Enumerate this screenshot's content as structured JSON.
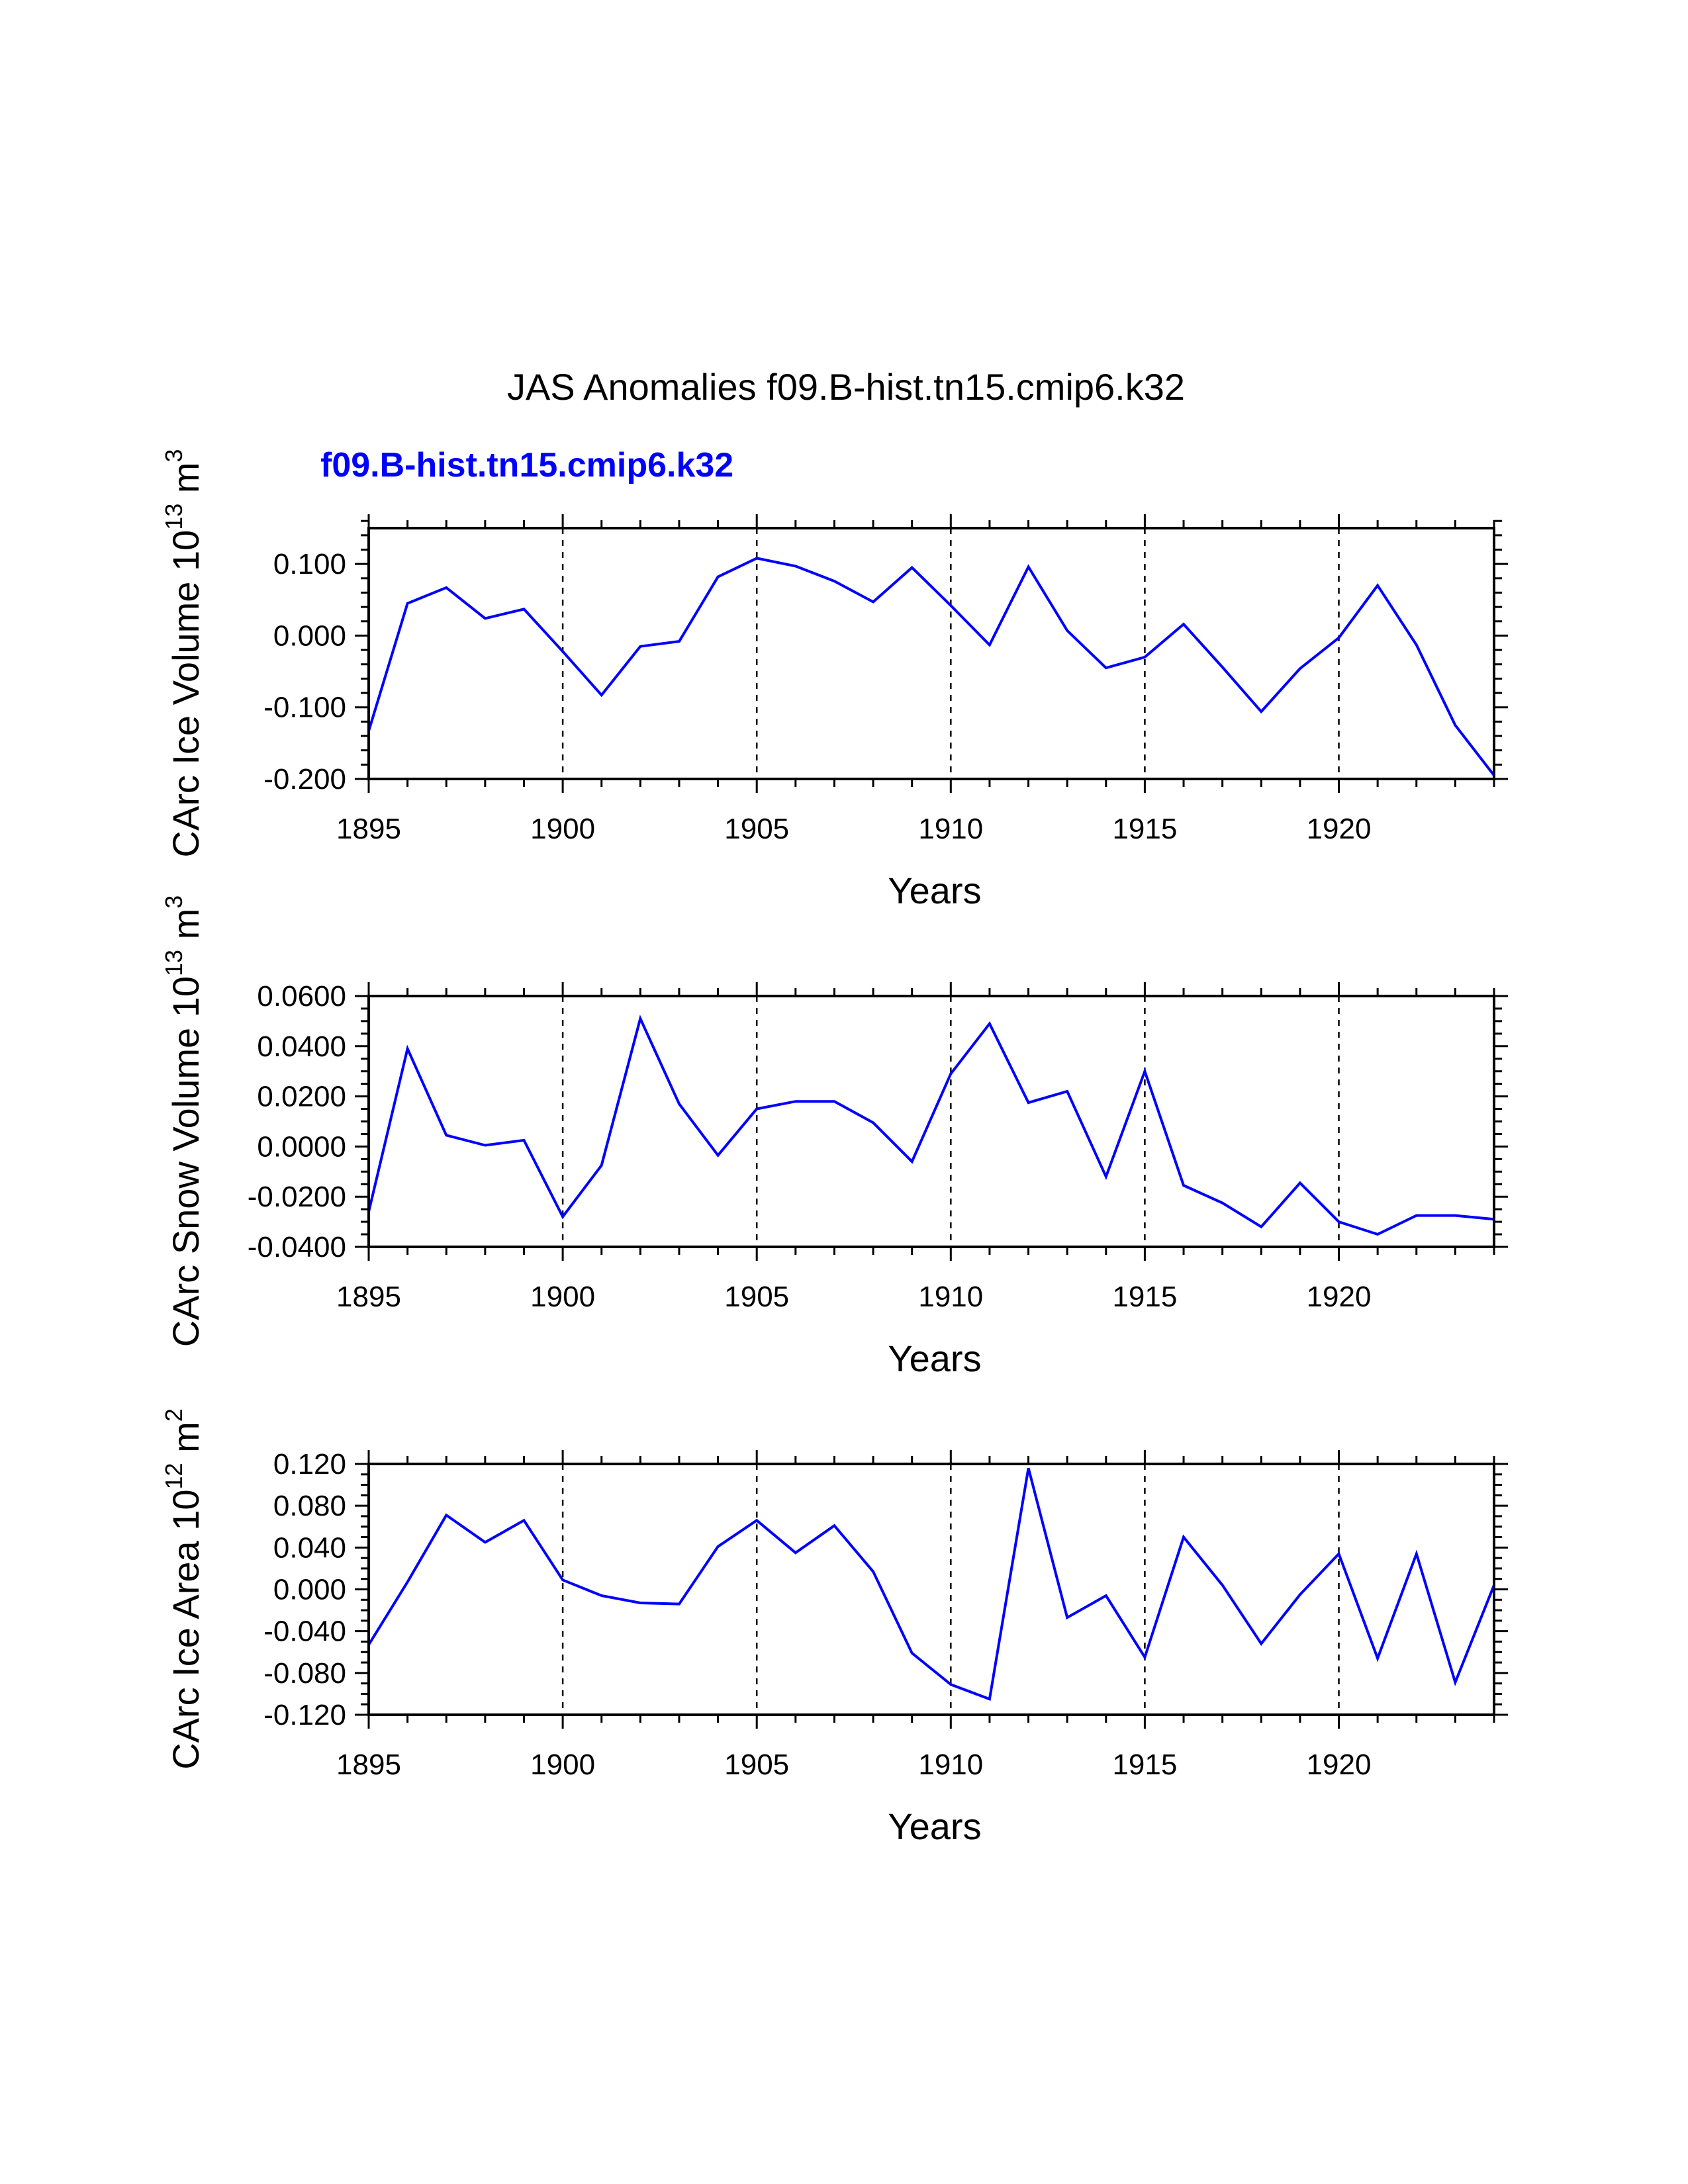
{
  "title": "JAS Anomalies f09.B-hist.tn15.cmip6.k32",
  "case_label": "f09.B-hist.tn15.cmip6.k32",
  "colors": {
    "series": "#0000ff",
    "axes": "#000000",
    "case_label": "#0000ff",
    "gridline": "#000000"
  },
  "chart_data": [
    {
      "type": "line",
      "ylabel": "CArc Ice Volume 10",
      "ylabel_exp": "13",
      "ylabel_unit": "m",
      "ylabel_unit_exp": "3",
      "xlabel": "Years",
      "xlim": [
        1895,
        1924
      ],
      "ylim": [
        -0.2,
        0.15
      ],
      "yticks": [
        -0.2,
        -0.1,
        0.0,
        0.1
      ],
      "ytick_labels": [
        "-0.200",
        "-0.100",
        "0.000",
        "0.100"
      ],
      "yminor_step": 0.02,
      "xticks": [
        1895,
        1900,
        1905,
        1910,
        1915,
        1920
      ],
      "xtick_labels": [
        "1895",
        "1900",
        "1905",
        "1910",
        "1915",
        "1920"
      ],
      "grid_x": [
        1900,
        1905,
        1910,
        1915,
        1920
      ],
      "series": [
        {
          "name": "f09.B-hist.tn15.cmip6.k32",
          "x": [
            1895,
            1896,
            1897,
            1898,
            1899,
            1900,
            1901,
            1902,
            1903,
            1904,
            1905,
            1906,
            1907,
            1908,
            1909,
            1910,
            1911,
            1912,
            1913,
            1914,
            1915,
            1916,
            1917,
            1918,
            1919,
            1920,
            1921,
            1922,
            1923,
            1924
          ],
          "values": [
            -0.133,
            0.045,
            0.067,
            0.024,
            0.037,
            -0.022,
            -0.083,
            -0.015,
            -0.008,
            0.082,
            0.108,
            0.097,
            0.076,
            0.047,
            0.095,
            0.042,
            -0.013,
            0.096,
            0.007,
            -0.045,
            -0.03,
            0.016,
            -0.044,
            -0.106,
            -0.046,
            -0.003,
            0.07,
            -0.013,
            -0.125,
            -0.195
          ]
        }
      ]
    },
    {
      "type": "line",
      "ylabel": "CArc Snow Volume 10",
      "ylabel_exp": "13",
      "ylabel_unit": "m",
      "ylabel_unit_exp": "3",
      "xlabel": "Years",
      "xlim": [
        1895,
        1924
      ],
      "ylim": [
        -0.04,
        0.06
      ],
      "yticks": [
        -0.04,
        -0.02,
        0.0,
        0.02,
        0.04,
        0.06
      ],
      "ytick_labels": [
        "-0.0400",
        "-0.0200",
        "0.0000",
        "0.0200",
        "0.0400",
        "0.0600"
      ],
      "yminor_step": 0.005,
      "xticks": [
        1895,
        1900,
        1905,
        1910,
        1915,
        1920
      ],
      "xtick_labels": [
        "1895",
        "1900",
        "1905",
        "1910",
        "1915",
        "1920"
      ],
      "grid_x": [
        1900,
        1905,
        1910,
        1915,
        1920
      ],
      "series": [
        {
          "name": "f09.B-hist.tn15.cmip6.k32",
          "x": [
            1895,
            1896,
            1897,
            1898,
            1899,
            1900,
            1901,
            1902,
            1903,
            1904,
            1905,
            1906,
            1907,
            1908,
            1909,
            1910,
            1911,
            1912,
            1913,
            1914,
            1915,
            1916,
            1917,
            1918,
            1919,
            1920,
            1921,
            1922,
            1923,
            1924
          ],
          "values": [
            -0.026,
            0.039,
            0.0045,
            0.0005,
            0.0025,
            -0.028,
            -0.0075,
            0.051,
            0.017,
            -0.0035,
            0.015,
            0.018,
            0.018,
            0.0095,
            -0.006,
            0.029,
            0.049,
            0.0175,
            0.022,
            -0.012,
            0.03,
            -0.0155,
            -0.0225,
            -0.032,
            -0.0145,
            -0.03,
            -0.035,
            -0.0275,
            -0.0275,
            -0.029
          ]
        }
      ]
    },
    {
      "type": "line",
      "ylabel": "CArc Ice Area 10",
      "ylabel_exp": "12",
      "ylabel_unit": "m",
      "ylabel_unit_exp": "2",
      "xlabel": "Years",
      "xlim": [
        1895,
        1924
      ],
      "ylim": [
        -0.12,
        0.12
      ],
      "yticks": [
        -0.12,
        -0.08,
        -0.04,
        0.0,
        0.04,
        0.08,
        0.12
      ],
      "ytick_labels": [
        "-0.120",
        "-0.080",
        "-0.040",
        "0.000",
        "0.040",
        "0.080",
        "0.120"
      ],
      "yminor_step": 0.01,
      "xticks": [
        1895,
        1900,
        1905,
        1910,
        1915,
        1920
      ],
      "xtick_labels": [
        "1895",
        "1900",
        "1905",
        "1910",
        "1915",
        "1920"
      ],
      "grid_x": [
        1900,
        1905,
        1910,
        1915,
        1920
      ],
      "series": [
        {
          "name": "f09.B-hist.tn15.cmip6.k32",
          "x": [
            1895,
            1896,
            1897,
            1898,
            1899,
            1900,
            1901,
            1902,
            1903,
            1904,
            1905,
            1906,
            1907,
            1908,
            1909,
            1910,
            1911,
            1912,
            1913,
            1914,
            1915,
            1916,
            1917,
            1918,
            1919,
            1920,
            1921,
            1922,
            1923,
            1924
          ],
          "values": [
            -0.053,
            0.007,
            0.071,
            0.045,
            0.066,
            0.009,
            -0.006,
            -0.013,
            -0.014,
            0.041,
            0.066,
            0.035,
            0.061,
            0.017,
            -0.061,
            -0.091,
            -0.105,
            0.116,
            -0.027,
            -0.006,
            -0.065,
            0.05,
            0.004,
            -0.052,
            -0.005,
            0.034,
            -0.066,
            0.034,
            -0.089,
            0.004
          ]
        }
      ]
    }
  ]
}
